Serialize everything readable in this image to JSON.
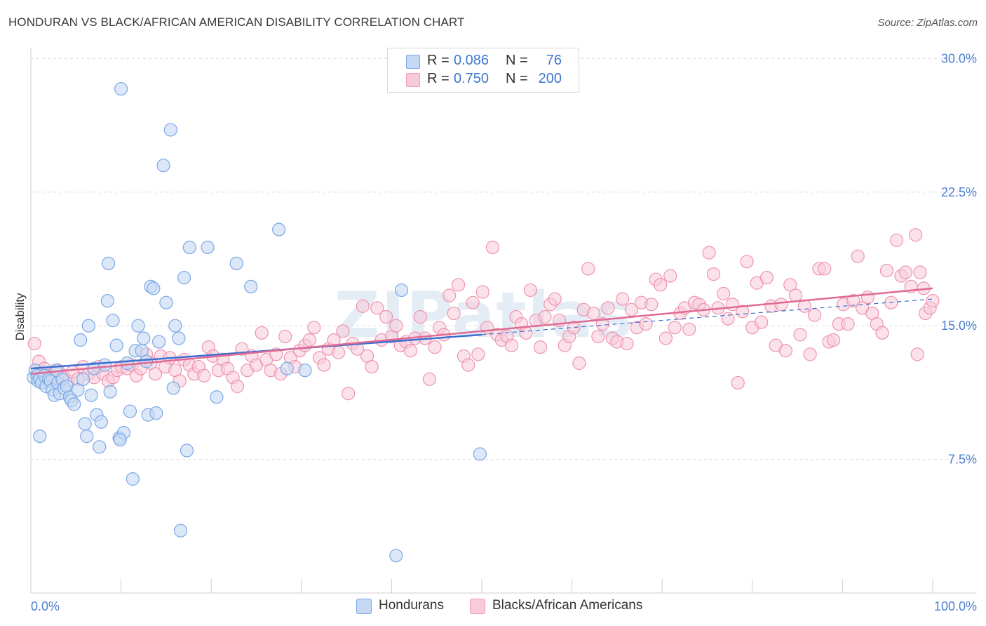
{
  "header": {
    "title": "HONDURAN VS BLACK/AFRICAN AMERICAN DISABILITY CORRELATION CHART",
    "source": "Source: ZipAtlas.com"
  },
  "legend": {
    "rows": [
      {
        "r_label": "R =",
        "r_value": "0.086",
        "n_label": "N =",
        "n_value": "76",
        "color": "#7ba7e6",
        "fill": "#c5d8f4"
      },
      {
        "r_label": "R =",
        "r_value": "0.750",
        "n_label": "N =",
        "n_value": "200",
        "color": "#f09ab4",
        "fill": "#f8cbd8"
      }
    ]
  },
  "bottom_legend": {
    "items": [
      {
        "label": "Hondurans",
        "color": "#7ba7e6",
        "fill": "#c5d8f4"
      },
      {
        "label": "Blacks/African Americans",
        "color": "#f09ab4",
        "fill": "#f8cbd8"
      }
    ]
  },
  "watermark": "ZIPatlas",
  "chart_data": {
    "type": "scatter",
    "title": "HONDURAN VS BLACK/AFRICAN AMERICAN DISABILITY CORRELATION CHART",
    "xlabel": "",
    "ylabel": "Disability",
    "xlim": [
      0,
      100
    ],
    "ylim": [
      0,
      31
    ],
    "x_tick_labels": [
      "0.0%",
      "100.0%"
    ],
    "y_ticks": [
      7.5,
      15.0,
      22.5,
      30.0
    ],
    "y_tick_labels": [
      "7.5%",
      "15.0%",
      "22.5%",
      "30.0%"
    ],
    "grid": true,
    "colors": {
      "hondurans": "#3b6fcf",
      "blacks": "#e06a93"
    },
    "series": [
      {
        "name": "Hondurans",
        "points": [
          [
            0.3,
            12.1
          ],
          [
            0.5,
            12.5
          ],
          [
            0.7,
            12.2
          ],
          [
            0.8,
            11.9
          ],
          [
            1.0,
            12.0
          ],
          [
            1.2,
            11.8
          ],
          [
            1.5,
            12.2
          ],
          [
            1.7,
            11.6
          ],
          [
            2.0,
            12.0
          ],
          [
            2.2,
            11.9
          ],
          [
            2.4,
            11.4
          ],
          [
            2.6,
            11.1
          ],
          [
            2.8,
            12.5
          ],
          [
            3.0,
            11.8
          ],
          [
            3.2,
            11.2
          ],
          [
            3.5,
            12.0
          ],
          [
            3.7,
            11.5
          ],
          [
            4.0,
            11.6
          ],
          [
            4.3,
            11.0
          ],
          [
            4.5,
            10.8
          ],
          [
            4.8,
            10.6
          ],
          [
            5.2,
            11.4
          ],
          [
            5.5,
            14.2
          ],
          [
            5.8,
            12.0
          ],
          [
            6.0,
            9.5
          ],
          [
            6.4,
            15.0
          ],
          [
            6.7,
            11.1
          ],
          [
            7.0,
            12.6
          ],
          [
            7.3,
            10.0
          ],
          [
            7.6,
            8.2
          ],
          [
            7.8,
            9.6
          ],
          [
            8.2,
            12.8
          ],
          [
            8.5,
            16.4
          ],
          [
            8.6,
            18.5
          ],
          [
            8.8,
            11.3
          ],
          [
            9.1,
            15.3
          ],
          [
            9.5,
            13.9
          ],
          [
            9.8,
            8.7
          ],
          [
            10.0,
            28.3
          ],
          [
            10.3,
            9.0
          ],
          [
            10.7,
            12.9
          ],
          [
            11.0,
            10.2
          ],
          [
            11.3,
            6.4
          ],
          [
            11.6,
            13.6
          ],
          [
            11.9,
            15.0
          ],
          [
            12.3,
            13.6
          ],
          [
            12.5,
            14.3
          ],
          [
            12.8,
            13.0
          ],
          [
            13.0,
            10.0
          ],
          [
            13.3,
            17.2
          ],
          [
            13.6,
            17.1
          ],
          [
            13.9,
            10.1
          ],
          [
            14.2,
            14.1
          ],
          [
            14.7,
            24.0
          ],
          [
            15.0,
            16.3
          ],
          [
            15.5,
            26.0
          ],
          [
            15.8,
            11.5
          ],
          [
            16.0,
            15.0
          ],
          [
            16.4,
            14.3
          ],
          [
            16.6,
            3.5
          ],
          [
            17.0,
            17.7
          ],
          [
            17.3,
            8.0
          ],
          [
            17.6,
            19.4
          ],
          [
            19.6,
            19.4
          ],
          [
            20.6,
            11.0
          ],
          [
            22.8,
            18.5
          ],
          [
            24.4,
            17.2
          ],
          [
            27.5,
            20.4
          ],
          [
            28.4,
            12.6
          ],
          [
            30.4,
            12.5
          ],
          [
            40.5,
            2.1
          ],
          [
            41.1,
            17.0
          ],
          [
            49.8,
            7.8
          ],
          [
            1.0,
            8.8
          ],
          [
            6.2,
            8.8
          ],
          [
            9.9,
            8.6
          ]
        ]
      },
      {
        "name": "Blacks/African Americans",
        "points": [
          [
            0.4,
            14.0
          ],
          [
            0.9,
            13.0
          ],
          [
            1.5,
            12.6
          ],
          [
            2.0,
            12.2
          ],
          [
            2.6,
            12.0
          ],
          [
            3.0,
            12.5
          ],
          [
            3.6,
            12.2
          ],
          [
            4.1,
            11.9
          ],
          [
            4.6,
            12.4
          ],
          [
            5.2,
            12.0
          ],
          [
            5.8,
            12.7
          ],
          [
            6.4,
            12.3
          ],
          [
            7.0,
            12.1
          ],
          [
            7.5,
            12.7
          ],
          [
            8.0,
            12.3
          ],
          [
            8.6,
            11.9
          ],
          [
            9.1,
            12.1
          ],
          [
            9.6,
            12.5
          ],
          [
            10.1,
            12.7
          ],
          [
            10.7,
            12.6
          ],
          [
            11.2,
            12.8
          ],
          [
            11.7,
            12.2
          ],
          [
            12.2,
            12.6
          ],
          [
            12.8,
            13.4
          ],
          [
            13.3,
            12.9
          ],
          [
            13.8,
            12.3
          ],
          [
            14.4,
            13.3
          ],
          [
            14.9,
            12.7
          ],
          [
            15.4,
            13.2
          ],
          [
            16.0,
            12.5
          ],
          [
            16.5,
            11.9
          ],
          [
            17.0,
            13.1
          ],
          [
            17.6,
            12.8
          ],
          [
            18.1,
            12.3
          ],
          [
            18.6,
            12.7
          ],
          [
            19.2,
            12.2
          ],
          [
            19.7,
            13.8
          ],
          [
            20.2,
            13.3
          ],
          [
            20.8,
            12.5
          ],
          [
            21.3,
            13.1
          ],
          [
            21.8,
            12.6
          ],
          [
            22.4,
            12.1
          ],
          [
            22.9,
            11.6
          ],
          [
            23.4,
            13.7
          ],
          [
            24.0,
            12.5
          ],
          [
            24.5,
            13.3
          ],
          [
            25.0,
            12.8
          ],
          [
            25.6,
            14.6
          ],
          [
            26.1,
            13.1
          ],
          [
            26.6,
            12.5
          ],
          [
            27.2,
            13.4
          ],
          [
            27.7,
            12.3
          ],
          [
            28.2,
            14.4
          ],
          [
            28.8,
            13.2
          ],
          [
            29.3,
            12.7
          ],
          [
            29.8,
            13.6
          ],
          [
            30.4,
            13.9
          ],
          [
            30.9,
            14.2
          ],
          [
            31.4,
            14.9
          ],
          [
            32.0,
            13.2
          ],
          [
            32.5,
            12.8
          ],
          [
            33.0,
            13.7
          ],
          [
            33.6,
            14.2
          ],
          [
            34.1,
            13.5
          ],
          [
            34.6,
            14.7
          ],
          [
            35.2,
            11.2
          ],
          [
            35.7,
            14.0
          ],
          [
            36.2,
            13.7
          ],
          [
            36.8,
            16.1
          ],
          [
            37.3,
            13.3
          ],
          [
            37.8,
            12.7
          ],
          [
            38.4,
            16.0
          ],
          [
            38.9,
            14.2
          ],
          [
            39.4,
            15.5
          ],
          [
            40.0,
            14.4
          ],
          [
            40.5,
            15.0
          ],
          [
            41.0,
            13.9
          ],
          [
            41.6,
            14.1
          ],
          [
            42.1,
            13.6
          ],
          [
            42.6,
            14.3
          ],
          [
            43.2,
            15.5
          ],
          [
            43.7,
            14.3
          ],
          [
            44.2,
            12.0
          ],
          [
            44.8,
            13.8
          ],
          [
            45.3,
            14.9
          ],
          [
            45.8,
            14.5
          ],
          [
            46.4,
            16.7
          ],
          [
            46.9,
            15.7
          ],
          [
            47.4,
            17.3
          ],
          [
            48.0,
            13.3
          ],
          [
            48.5,
            12.8
          ],
          [
            49.0,
            16.3
          ],
          [
            49.6,
            13.4
          ],
          [
            50.1,
            16.9
          ],
          [
            50.6,
            14.9
          ],
          [
            51.2,
            19.4
          ],
          [
            51.7,
            14.5
          ],
          [
            52.2,
            14.2
          ],
          [
            52.8,
            14.4
          ],
          [
            53.3,
            13.9
          ],
          [
            53.8,
            15.5
          ],
          [
            54.4,
            15.1
          ],
          [
            54.9,
            14.6
          ],
          [
            55.4,
            17.0
          ],
          [
            56.0,
            15.3
          ],
          [
            56.5,
            13.8
          ],
          [
            57.0,
            15.5
          ],
          [
            57.6,
            16.2
          ],
          [
            58.1,
            16.5
          ],
          [
            58.6,
            15.3
          ],
          [
            59.2,
            13.9
          ],
          [
            59.7,
            14.4
          ],
          [
            60.2,
            14.9
          ],
          [
            60.8,
            12.9
          ],
          [
            61.3,
            15.9
          ],
          [
            61.8,
            18.2
          ],
          [
            62.4,
            15.7
          ],
          [
            62.9,
            14.4
          ],
          [
            63.4,
            15.1
          ],
          [
            64.0,
            16.0
          ],
          [
            64.5,
            14.3
          ],
          [
            65.0,
            14.1
          ],
          [
            65.6,
            16.5
          ],
          [
            66.1,
            14.0
          ],
          [
            66.6,
            15.9
          ],
          [
            67.2,
            14.9
          ],
          [
            67.7,
            16.3
          ],
          [
            68.2,
            15.1
          ],
          [
            68.8,
            16.2
          ],
          [
            69.3,
            17.6
          ],
          [
            69.8,
            17.3
          ],
          [
            70.4,
            14.3
          ],
          [
            70.9,
            17.8
          ],
          [
            71.4,
            14.9
          ],
          [
            72.0,
            15.7
          ],
          [
            72.5,
            16.0
          ],
          [
            73.0,
            14.8
          ],
          [
            73.6,
            16.3
          ],
          [
            74.1,
            16.2
          ],
          [
            74.6,
            15.9
          ],
          [
            75.2,
            19.1
          ],
          [
            75.7,
            17.9
          ],
          [
            76.2,
            16.0
          ],
          [
            76.8,
            16.8
          ],
          [
            77.3,
            15.4
          ],
          [
            77.8,
            16.2
          ],
          [
            78.4,
            11.8
          ],
          [
            78.9,
            15.8
          ],
          [
            79.4,
            18.6
          ],
          [
            80.0,
            14.9
          ],
          [
            80.5,
            17.4
          ],
          [
            81.0,
            15.2
          ],
          [
            81.6,
            17.7
          ],
          [
            82.1,
            16.1
          ],
          [
            82.6,
            13.9
          ],
          [
            83.2,
            16.2
          ],
          [
            83.7,
            13.6
          ],
          [
            84.2,
            17.3
          ],
          [
            84.8,
            16.7
          ],
          [
            85.3,
            14.5
          ],
          [
            85.8,
            16.1
          ],
          [
            86.4,
            13.4
          ],
          [
            86.9,
            15.6
          ],
          [
            87.4,
            18.2
          ],
          [
            88.0,
            18.2
          ],
          [
            88.5,
            14.1
          ],
          [
            89.0,
            14.2
          ],
          [
            89.6,
            15.1
          ],
          [
            90.1,
            16.2
          ],
          [
            90.6,
            15.1
          ],
          [
            91.2,
            16.4
          ],
          [
            91.7,
            18.9
          ],
          [
            92.2,
            16.0
          ],
          [
            92.8,
            16.6
          ],
          [
            93.3,
            15.7
          ],
          [
            93.8,
            15.1
          ],
          [
            94.4,
            14.6
          ],
          [
            94.9,
            18.1
          ],
          [
            95.4,
            16.3
          ],
          [
            96.0,
            19.8
          ],
          [
            96.5,
            17.8
          ],
          [
            97.0,
            18.0
          ],
          [
            97.6,
            17.2
          ],
          [
            98.1,
            20.1
          ],
          [
            98.6,
            18.0
          ],
          [
            99.2,
            15.7
          ],
          [
            99.7,
            16.0
          ],
          [
            100.0,
            16.4
          ],
          [
            98.3,
            13.4
          ],
          [
            99.0,
            17.1
          ]
        ]
      }
    ],
    "trend_lines": [
      {
        "name": "Hondurans",
        "x": [
          0,
          50
        ],
        "y": [
          12.6,
          14.5
        ],
        "style": "solid",
        "color": "#3b6fcf"
      },
      {
        "name": "Hondurans",
        "x": [
          50,
          100
        ],
        "y": [
          14.5,
          16.5
        ],
        "style": "dashed",
        "color": "#3b6fcf"
      },
      {
        "name": "Blacks/African Americans",
        "x": [
          0,
          100
        ],
        "y": [
          12.3,
          17.1
        ],
        "style": "solid",
        "color": "#e06a93"
      }
    ]
  }
}
